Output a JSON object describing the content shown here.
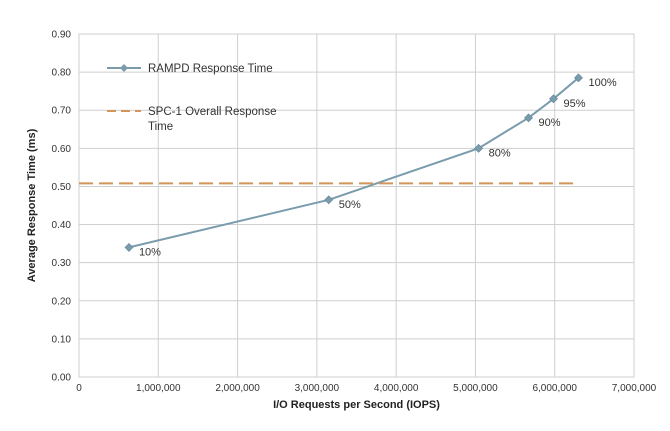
{
  "chart_data": {
    "type": "line",
    "xlabel": "I/O Requests per Second (IOPS)",
    "ylabel": "Average Response Time (ms)",
    "xlim": [
      0,
      7000000
    ],
    "ylim": [
      0,
      0.9
    ],
    "x_ticks": [
      0,
      1000000,
      2000000,
      3000000,
      4000000,
      5000000,
      6000000,
      7000000
    ],
    "x_tick_labels": [
      "0",
      "1,000,000",
      "2,000,000",
      "3,000,000",
      "4,000,000",
      "5,000,000",
      "6,000,000",
      "7,000,000"
    ],
    "y_ticks": [
      0,
      0.1,
      0.2,
      0.3,
      0.4,
      0.5,
      0.6,
      0.7,
      0.8,
      0.9
    ],
    "y_tick_labels": [
      "0.00",
      "0.10",
      "0.20",
      "0.30",
      "0.40",
      "0.50",
      "0.60",
      "0.70",
      "0.80",
      "0.90"
    ],
    "grid": true,
    "legend_position": "top-left",
    "series": [
      {
        "name": "RAMPD Response Time",
        "color": "#7a9cad",
        "marker": "diamond",
        "x": [
          630000,
          3150000,
          5040000,
          5670000,
          5985000,
          6300000
        ],
        "y": [
          0.34,
          0.465,
          0.6,
          0.68,
          0.73,
          0.785
        ],
        "point_labels": [
          "10%",
          "50%",
          "80%",
          "90%",
          "95%",
          "100%"
        ]
      },
      {
        "name": "SPC-1 Overall Response Time",
        "color": "#d4955a",
        "style": "dashed",
        "x": [
          0,
          6300000
        ],
        "y": [
          0.508,
          0.508
        ]
      }
    ]
  }
}
